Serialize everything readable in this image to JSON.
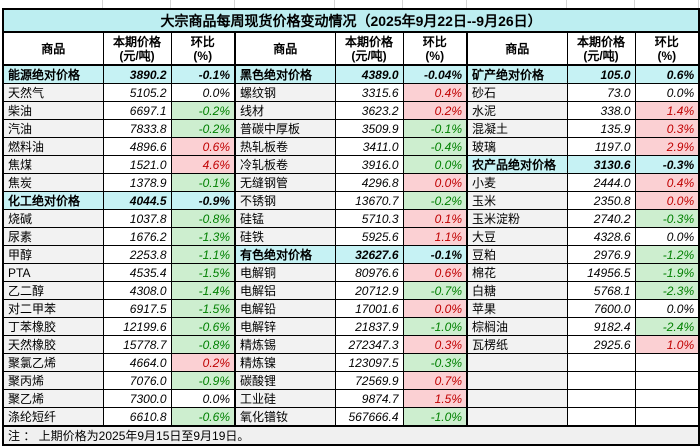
{
  "title": "大宗商品每周现货价格变动情况（2025年9月22日--9月26日）",
  "note": "注 ： 上期价格为2025年9月15日至9月19日。",
  "colors": {
    "title_bg": "#bdeef1",
    "summary_bg": "#c6f2f4",
    "name_col_bg": "#f2f2f2",
    "increase_bg": "#fbd0d3",
    "increase_text": "#c00000",
    "decrease_bg": "#cdeecf",
    "decrease_text": "#008000",
    "note_bg": "#f0f0f0"
  },
  "header": {
    "commodity": "商品",
    "price_line1": "本期价格",
    "price_line2": "(元/吨)",
    "pct_line1": "环比",
    "pct_line2": "(%)"
  },
  "groups": [
    {
      "rows": [
        {
          "name": "能源绝对价格",
          "price": "3890.2",
          "pct": "-0.1%",
          "style": "summary"
        },
        {
          "name": "天然气",
          "price": "5105.2",
          "pct": "0.0%",
          "style": "flat"
        },
        {
          "name": "柴油",
          "price": "6697.1",
          "pct": "-0.2%",
          "style": "down"
        },
        {
          "name": "汽油",
          "price": "7833.8",
          "pct": "-0.2%",
          "style": "down"
        },
        {
          "name": "燃料油",
          "price": "4896.6",
          "pct": "0.6%",
          "style": "up"
        },
        {
          "name": "焦煤",
          "price": "1521.0",
          "pct": "4.6%",
          "style": "up"
        },
        {
          "name": "焦炭",
          "price": "1378.9",
          "pct": "-0.1%",
          "style": "down"
        },
        {
          "name": "化工绝对价格",
          "price": "4044.5",
          "pct": "-0.9%",
          "style": "summary"
        },
        {
          "name": "烧碱",
          "price": "1037.8",
          "pct": "-0.8%",
          "style": "down"
        },
        {
          "name": "尿素",
          "price": "1676.2",
          "pct": "-1.3%",
          "style": "down"
        },
        {
          "name": "甲醇",
          "price": "2253.8",
          "pct": "-1.1%",
          "style": "down"
        },
        {
          "name": "PTA",
          "price": "4535.4",
          "pct": "-1.5%",
          "style": "down"
        },
        {
          "name": "乙二醇",
          "price": "4308.0",
          "pct": "-1.4%",
          "style": "down"
        },
        {
          "name": "对二甲苯",
          "price": "6917.5",
          "pct": "-1.5%",
          "style": "down"
        },
        {
          "name": "丁苯橡胶",
          "price": "12199.6",
          "pct": "-0.6%",
          "style": "down"
        },
        {
          "name": "天然橡胶",
          "price": "15778.7",
          "pct": "-0.8%",
          "style": "down"
        },
        {
          "name": "聚氯乙烯",
          "price": "4664.0",
          "pct": "0.2%",
          "style": "up"
        },
        {
          "name": "聚丙烯",
          "price": "7076.0",
          "pct": "-0.9%",
          "style": "down"
        },
        {
          "name": "聚乙烯",
          "price": "7300.0",
          "pct": "0.0%",
          "style": "flat"
        },
        {
          "name": "涤纶短纤",
          "price": "6610.8",
          "pct": "-0.6%",
          "style": "down"
        }
      ]
    },
    {
      "rows": [
        {
          "name": "黑色绝对价格",
          "price": "4389.0",
          "pct": "-0.04%",
          "style": "summary"
        },
        {
          "name": "螺纹钢",
          "price": "3315.6",
          "pct": "0.4%",
          "style": "up"
        },
        {
          "name": "线材",
          "price": "3623.2",
          "pct": "0.2%",
          "style": "up"
        },
        {
          "name": "普碳中厚板",
          "price": "3509.9",
          "pct": "-0.1%",
          "style": "down"
        },
        {
          "name": "热轧板卷",
          "price": "3411.0",
          "pct": "-0.4%",
          "style": "down"
        },
        {
          "name": "冷轧板卷",
          "price": "3916.0",
          "pct": "0.0%",
          "style": "down"
        },
        {
          "name": "无缝钢管",
          "price": "4296.8",
          "pct": "0.0%",
          "style": "up"
        },
        {
          "name": "不锈钢",
          "price": "13670.7",
          "pct": "-0.2%",
          "style": "down"
        },
        {
          "name": "硅锰",
          "price": "5710.3",
          "pct": "0.1%",
          "style": "up"
        },
        {
          "name": "硅铁",
          "price": "5925.6",
          "pct": "1.1%",
          "style": "up"
        },
        {
          "name": "有色绝对价格",
          "price": "32627.6",
          "pct": "-0.1%",
          "style": "summary"
        },
        {
          "name": "电解铜",
          "price": "80976.6",
          "pct": "0.6%",
          "style": "up"
        },
        {
          "name": "电解铝",
          "price": "20712.9",
          "pct": "-0.7%",
          "style": "down"
        },
        {
          "name": "电解铅",
          "price": "17001.6",
          "pct": "0.0%",
          "style": "up"
        },
        {
          "name": "电解锌",
          "price": "21837.9",
          "pct": "-1.0%",
          "style": "down"
        },
        {
          "name": "精炼锡",
          "price": "272347.3",
          "pct": "0.3%",
          "style": "up"
        },
        {
          "name": "精炼镍",
          "price": "123097.5",
          "pct": "-0.3%",
          "style": "down"
        },
        {
          "name": "碳酸锂",
          "price": "72569.9",
          "pct": "0.7%",
          "style": "up"
        },
        {
          "name": "工业硅",
          "price": "9874.7",
          "pct": "1.5%",
          "style": "up"
        },
        {
          "name": "氧化镨钕",
          "price": "567666.4",
          "pct": "-1.0%",
          "style": "down"
        }
      ]
    },
    {
      "rows": [
        {
          "name": "矿产绝对价格",
          "price": "105.0",
          "pct": "0.6%",
          "style": "summary"
        },
        {
          "name": "砂石",
          "price": "73.0",
          "pct": "0.0%",
          "style": "flat"
        },
        {
          "name": "水泥",
          "price": "338.0",
          "pct": "1.4%",
          "style": "up"
        },
        {
          "name": "混凝土",
          "price": "135.9",
          "pct": "0.3%",
          "style": "up"
        },
        {
          "name": "玻璃",
          "price": "1197.0",
          "pct": "2.9%",
          "style": "up"
        },
        {
          "name": "农产品绝对价格",
          "price": "3130.6",
          "pct": "-0.3%",
          "style": "summary"
        },
        {
          "name": "小麦",
          "price": "2444.0",
          "pct": "0.4%",
          "style": "up"
        },
        {
          "name": "玉米",
          "price": "2350.8",
          "pct": "0.0%",
          "style": "up"
        },
        {
          "name": "玉米淀粉",
          "price": "2740.2",
          "pct": "-0.3%",
          "style": "down"
        },
        {
          "name": "大豆",
          "price": "4328.6",
          "pct": "0.0%",
          "style": "flat"
        },
        {
          "name": "豆粕",
          "price": "2976.9",
          "pct": "-1.2%",
          "style": "down"
        },
        {
          "name": "棉花",
          "price": "14956.5",
          "pct": "-1.9%",
          "style": "down"
        },
        {
          "name": "白糖",
          "price": "5768.1",
          "pct": "-2.3%",
          "style": "down"
        },
        {
          "name": "苹果",
          "price": "7600.0",
          "pct": "0.0%",
          "style": "flat"
        },
        {
          "name": "棕榈油",
          "price": "9182.4",
          "pct": "-2.4%",
          "style": "down"
        },
        {
          "name": "瓦楞纸",
          "price": "2925.6",
          "pct": "1.0%",
          "style": "up"
        },
        {
          "name": "",
          "price": "",
          "pct": "",
          "style": "empty"
        },
        {
          "name": "",
          "price": "",
          "pct": "",
          "style": "empty"
        },
        {
          "name": "",
          "price": "",
          "pct": "",
          "style": "empty"
        },
        {
          "name": "",
          "price": "",
          "pct": "",
          "style": "empty"
        }
      ]
    }
  ]
}
